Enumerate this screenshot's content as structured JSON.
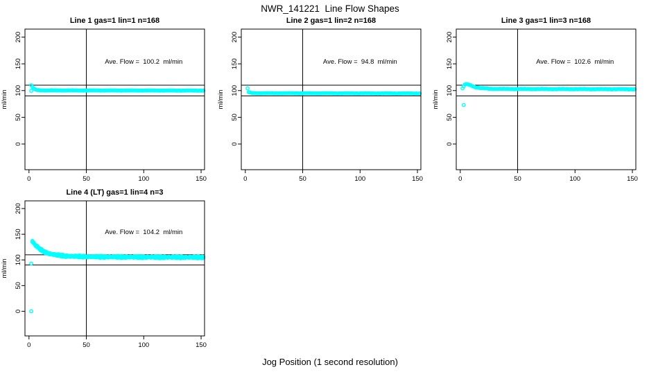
{
  "figure": {
    "title": "NWR_141221  Line Flow Shapes",
    "x_axis_label": "Jog Position (1 second resolution)",
    "y_axis_label": "ml/min",
    "point_color": "#00ffff",
    "axis_color": "#000000"
  },
  "chart_data": [
    {
      "type": "scatter",
      "title": "Line 1 gas=1 lin=1 n=168",
      "annotation": "Ave. Flow =  100.2  ml/min",
      "ave_flow_ml_min": 100.2,
      "n": 168,
      "xlim": [
        -3.5,
        153
      ],
      "ylim": [
        -48,
        215
      ],
      "xticks": [
        0,
        50,
        100,
        150
      ],
      "yticks": [
        0,
        50,
        100,
        150,
        200
      ],
      "vline_x": 50,
      "hlines_y": [
        90,
        110
      ],
      "x_start": 2,
      "x_end": 152,
      "x_step": 1,
      "keypoints": [
        [
          2,
          110
        ],
        [
          3,
          107
        ],
        [
          4,
          104
        ],
        [
          5,
          102.5
        ],
        [
          7,
          101
        ],
        [
          10,
          100.5
        ],
        [
          15,
          100.3
        ],
        [
          152,
          100
        ]
      ],
      "outliers": [
        [
          2,
          99.5
        ]
      ],
      "noise_amp": 0.35,
      "passes": 1,
      "annotation_at": [
        100,
        150
      ]
    },
    {
      "type": "scatter",
      "title": "Line 2 gas=1 lin=2 n=168",
      "annotation": "Ave. Flow =  94.8  ml/min",
      "ave_flow_ml_min": 94.8,
      "n": 168,
      "xlim": [
        -3.5,
        153
      ],
      "ylim": [
        -48,
        215
      ],
      "xticks": [
        0,
        50,
        100,
        150
      ],
      "yticks": [
        0,
        50,
        100,
        150,
        200
      ],
      "vline_x": 50,
      "hlines_y": [
        90,
        110
      ],
      "x_start": 2,
      "x_end": 152,
      "x_step": 1,
      "keypoints": [
        [
          2,
          104
        ],
        [
          3,
          97
        ],
        [
          5,
          95.5
        ],
        [
          10,
          95
        ],
        [
          152,
          94.6
        ]
      ],
      "outliers": [],
      "noise_amp": 0.35,
      "passes": 1,
      "annotation_at": [
        100,
        150
      ]
    },
    {
      "type": "scatter",
      "title": "Line 3 gas=1 lin=3 n=168",
      "annotation": "Ave. Flow =  102.6  ml/min",
      "ave_flow_ml_min": 102.6,
      "n": 168,
      "xlim": [
        -3.5,
        153
      ],
      "ylim": [
        -48,
        215
      ],
      "xticks": [
        0,
        50,
        100,
        150
      ],
      "yticks": [
        0,
        50,
        100,
        150,
        200
      ],
      "vline_x": 50,
      "hlines_y": [
        90,
        110
      ],
      "x_start": 2,
      "x_end": 152,
      "x_step": 1,
      "keypoints": [
        [
          2,
          104
        ],
        [
          3,
          108
        ],
        [
          4,
          111
        ],
        [
          6,
          112
        ],
        [
          9,
          110
        ],
        [
          13,
          106.5
        ],
        [
          18,
          104.5
        ],
        [
          25,
          103.5
        ],
        [
          40,
          103
        ],
        [
          152,
          102.5
        ]
      ],
      "outliers": [
        [
          3,
          73
        ]
      ],
      "noise_amp": 0.5,
      "passes": 1,
      "annotation_at": [
        100,
        150
      ]
    },
    {
      "type": "scatter",
      "title": "Line 4 (LT) gas=1 lin=4 n=3",
      "annotation": "Ave. Flow =  104.2  ml/min",
      "ave_flow_ml_min": 104.2,
      "n": 3,
      "xlim": [
        -3.5,
        153
      ],
      "ylim": [
        -48,
        215
      ],
      "xticks": [
        0,
        50,
        100,
        150
      ],
      "yticks": [
        0,
        50,
        100,
        150,
        200
      ],
      "vline_x": 50,
      "hlines_y": [
        90,
        110
      ],
      "x_start": 3,
      "x_end": 152,
      "x_step": 1,
      "keypoints": [
        [
          3,
          136
        ],
        [
          4,
          133
        ],
        [
          6,
          128
        ],
        [
          9,
          122
        ],
        [
          13,
          116
        ],
        [
          18,
          112
        ],
        [
          24,
          109.5
        ],
        [
          32,
          107.5
        ],
        [
          45,
          106.5
        ],
        [
          60,
          106
        ],
        [
          90,
          105.5
        ],
        [
          152,
          105
        ]
      ],
      "outliers": [
        [
          2,
          0
        ],
        [
          2,
          93
        ]
      ],
      "noise_amp": 1.1,
      "passes": 3,
      "annotation_at": [
        100,
        150
      ]
    }
  ]
}
